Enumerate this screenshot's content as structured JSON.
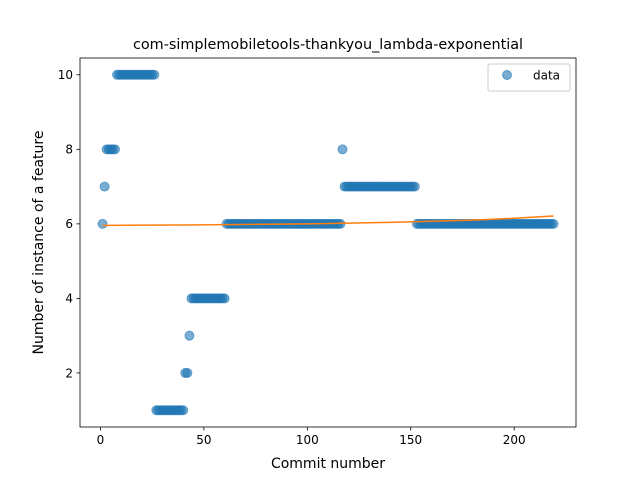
{
  "chart_data": {
    "type": "scatter",
    "title": "com-simplemobiletools-thankyou_lambda-exponential",
    "xlabel": "Commit number",
    "ylabel": "Number of instance of a feature",
    "xlim": [
      -9.9,
      229.9
    ],
    "ylim": [
      0.55,
      10.45
    ],
    "xticks": [
      0,
      50,
      100,
      150,
      200
    ],
    "yticks": [
      2,
      4,
      6,
      8,
      10
    ],
    "grid": false,
    "legend_position": "top-right",
    "series": [
      {
        "name": "data",
        "kind": "scatter",
        "color": "#1f77b4",
        "alpha": 0.6,
        "runs": [
          {
            "x_start": 1,
            "x_end": 1,
            "y": 6
          },
          {
            "x_start": 2,
            "x_end": 2,
            "y": 7
          },
          {
            "x_start": 3,
            "x_end": 7,
            "y": 8
          },
          {
            "x_start": 8,
            "x_end": 26,
            "y": 10
          },
          {
            "x_start": 27,
            "x_end": 40,
            "y": 1
          },
          {
            "x_start": 41,
            "x_end": 42,
            "y": 2
          },
          {
            "x_start": 43,
            "x_end": 43,
            "y": 3
          },
          {
            "x_start": 44,
            "x_end": 60,
            "y": 4
          },
          {
            "x_start": 61,
            "x_end": 116,
            "y": 6
          },
          {
            "x_start": 117,
            "x_end": 117,
            "y": 8
          },
          {
            "x_start": 118,
            "x_end": 152,
            "y": 7
          },
          {
            "x_start": 153,
            "x_end": 219,
            "y": 6
          }
        ]
      },
      {
        "name": "",
        "kind": "line",
        "color": "#ff7f0e",
        "x": [
          1,
          20,
          40,
          60,
          80,
          100,
          120,
          140,
          160,
          180,
          200,
          219
        ],
        "y": [
          5.96,
          5.965,
          5.97,
          5.98,
          5.99,
          6.0,
          6.02,
          6.04,
          6.07,
          6.1,
          6.15,
          6.21
        ]
      }
    ]
  }
}
